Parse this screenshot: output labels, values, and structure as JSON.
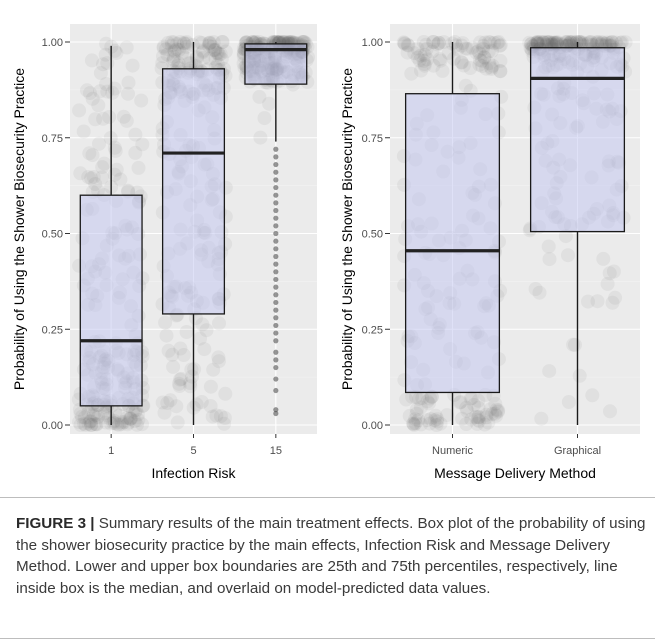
{
  "chart_data": [
    {
      "type": "box",
      "xlabel": "Infection Risk",
      "ylabel": "Probability of Using the Shower Biosecurity Practice",
      "categories": [
        "1",
        "5",
        "15"
      ],
      "ylim": [
        0,
        1
      ],
      "yticks": [
        "0.00",
        "0.25",
        "0.50",
        "0.75",
        "1.00"
      ],
      "boxes": [
        {
          "category": "1",
          "lower_whisker": 0.0,
          "q1": 0.05,
          "median": 0.22,
          "q3": 0.6,
          "upper_whisker": 0.99,
          "jitter_density": "low-heavy"
        },
        {
          "category": "5",
          "lower_whisker": 0.0,
          "q1": 0.29,
          "median": 0.71,
          "q3": 0.93,
          "upper_whisker": 1.0,
          "jitter_density": "high-heavy"
        },
        {
          "category": "15",
          "lower_whisker": 0.74,
          "q1": 0.89,
          "median": 0.98,
          "q3": 0.995,
          "upper_whisker": 1.0,
          "jitter_density": "top-heavy"
        }
      ],
      "outliers_category_15": [
        0.72,
        0.7,
        0.68,
        0.66,
        0.64,
        0.62,
        0.6,
        0.58,
        0.56,
        0.54,
        0.52,
        0.5,
        0.48,
        0.46,
        0.44,
        0.42,
        0.4,
        0.38,
        0.36,
        0.34,
        0.32,
        0.3,
        0.28,
        0.26,
        0.24,
        0.22,
        0.19,
        0.17,
        0.15,
        0.12,
        0.09,
        0.04,
        0.03
      ],
      "grid": true,
      "legend": "none"
    },
    {
      "type": "box",
      "xlabel": "Message Delivery Method",
      "ylabel": "Probability of Using the Shower Biosecurity Practice",
      "categories": [
        "Numeric",
        "Graphical"
      ],
      "ylim": [
        0,
        1
      ],
      "yticks": [
        "0.00",
        "0.25",
        "0.50",
        "0.75",
        "1.00"
      ],
      "boxes": [
        {
          "category": "Numeric",
          "lower_whisker": 0.0,
          "q1": 0.085,
          "median": 0.455,
          "q3": 0.865,
          "upper_whisker": 1.0,
          "jitter_density": "both-ends"
        },
        {
          "category": "Graphical",
          "lower_whisker": 0.0,
          "q1": 0.505,
          "median": 0.905,
          "q3": 0.985,
          "upper_whisker": 1.0,
          "jitter_density": "top-heavy"
        }
      ],
      "grid": true,
      "legend": "none"
    }
  ],
  "caption": {
    "label": "FIGURE 3 |",
    "text": " Summary results of the main treatment effects. Box plot of the probability of using the shower biosecurity practice by the main effects, Infection Risk and Message Delivery Method. Lower and upper box boundaries are 25th and 75th percentiles, respectively, line inside box is the median, and overlaid on model-predicted data values."
  },
  "colors": {
    "panel_background": "#ebebeb",
    "box_fill": "#c5c8f0",
    "jitter_points": "#555555",
    "rule": "#bdbdbd"
  }
}
